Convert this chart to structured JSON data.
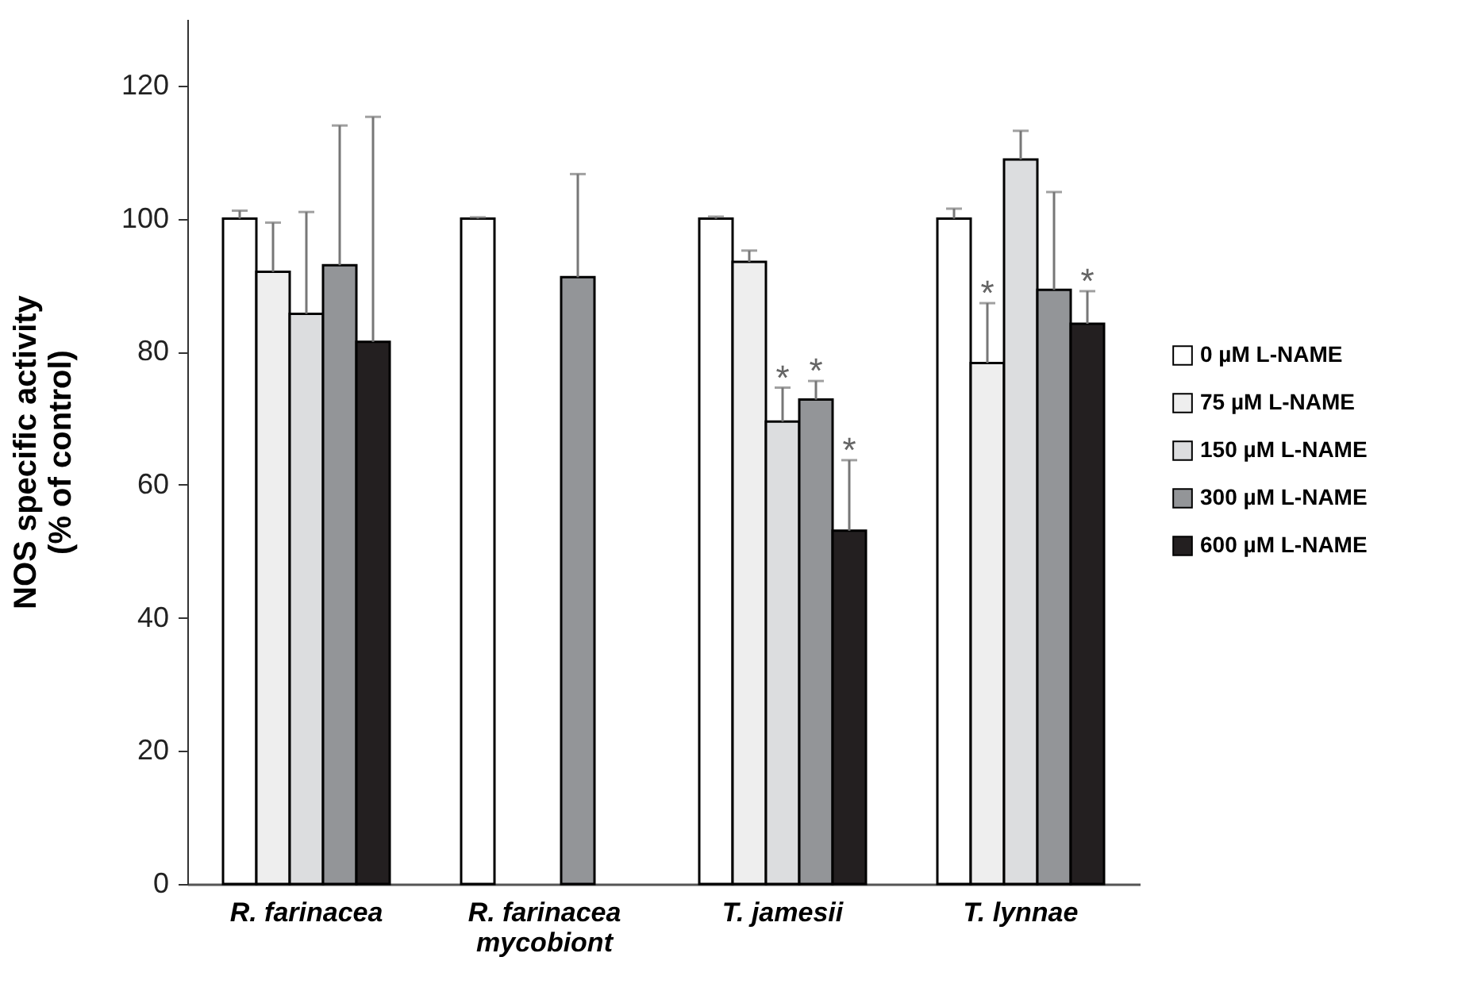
{
  "chart_data": {
    "type": "bar",
    "ylabel": "NOS specific activity (% of control)",
    "categories": [
      "R. farinacea",
      "R. farinacea mycobiont",
      "T. jamesii",
      "T. lynnae"
    ],
    "series": [
      {
        "name": "0 µM L-NAME",
        "color": "#ffffff",
        "values": [
          100,
          100,
          100,
          100
        ],
        "errors": [
          1.2,
          0.2,
          0.3,
          1.5
        ]
      },
      {
        "name": "75 µM L-NAME",
        "color": "#eeeeee",
        "values": [
          92,
          null,
          93.5,
          78.3
        ],
        "errors": [
          7.4,
          null,
          1.7,
          9
        ],
        "value_labels": [
          null,
          null,
          null,
          "*"
        ]
      },
      {
        "name": "150 µM L-NAME",
        "color": "#dcdddf",
        "values": [
          85.7,
          null,
          69.5,
          108.9
        ],
        "errors": [
          15.3,
          null,
          5.1,
          4.3
        ],
        "value_labels": [
          null,
          null,
          "*",
          null
        ]
      },
      {
        "name": "300 µM L-NAME",
        "color": "#939598",
        "values": [
          93,
          91.2,
          72.8,
          89.3
        ],
        "errors": [
          21,
          15.5,
          2.8,
          14.7
        ],
        "value_labels": [
          null,
          null,
          "*",
          null
        ]
      },
      {
        "name": "600 µM L-NAME",
        "color": "#231f20",
        "values": [
          81.5,
          null,
          53.1,
          84.2
        ],
        "errors": [
          33.8,
          null,
          10.6,
          4.9
        ],
        "value_labels": [
          null,
          null,
          "*",
          "*"
        ]
      }
    ],
    "ylim": [
      0,
      130
    ],
    "yticks": [
      0,
      20,
      40,
      60,
      80,
      100,
      120
    ],
    "grid": false,
    "legend": "right"
  }
}
